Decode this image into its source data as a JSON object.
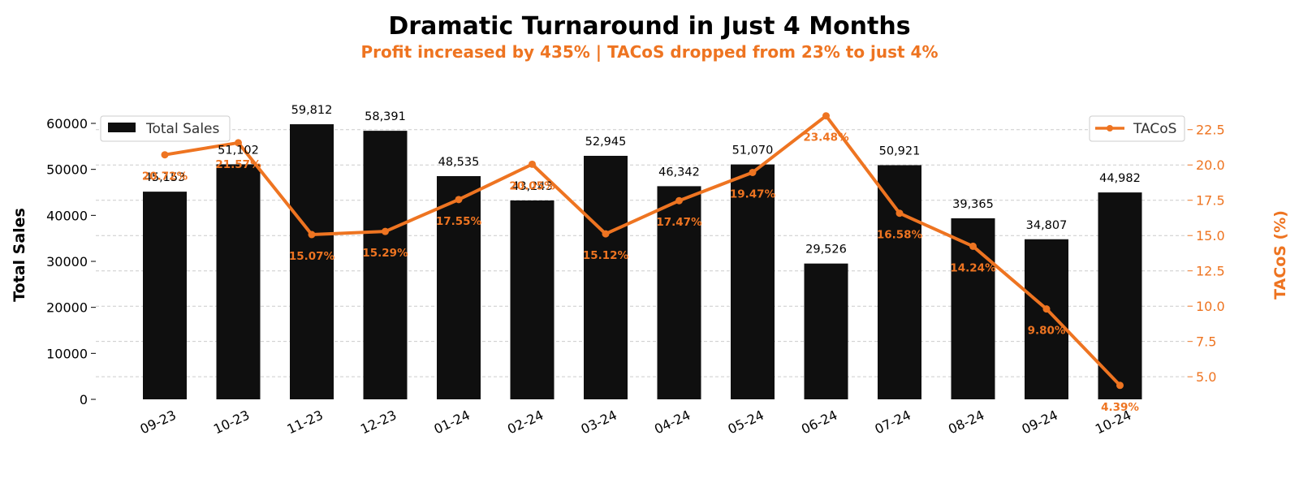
{
  "colors": {
    "bar": "#0f0f0f",
    "accent": "#ee7421",
    "grid": "#cccccc"
  },
  "chart_data": {
    "type": "bar",
    "title": "Dramatic Turnaround in Just 4 Months",
    "subtitle": "Profit increased by 435%  |  TACoS dropped from 23% to just 4%",
    "categories": [
      "09-23",
      "10-23",
      "11-23",
      "12-23",
      "01-24",
      "02-24",
      "03-24",
      "04-24",
      "05-24",
      "06-24",
      "07-24",
      "08-24",
      "09-24",
      "10-24"
    ],
    "series": [
      {
        "name": "Total Sales",
        "type": "bar",
        "axis": "left",
        "values": [
          45153,
          51102,
          59812,
          58391,
          48535,
          43243,
          52945,
          46342,
          51070,
          29526,
          50921,
          39365,
          34807,
          44982
        ],
        "labels": [
          "45,153",
          "51,102",
          "59,812",
          "58,391",
          "48,535",
          "43,243",
          "52,945",
          "46,342",
          "51,070",
          "29,526",
          "50,921",
          "39,365",
          "34,807",
          "44,982"
        ]
      },
      {
        "name": "TACoS",
        "type": "line",
        "axis": "right",
        "values": [
          20.72,
          21.57,
          15.07,
          15.29,
          17.55,
          20.05,
          15.12,
          17.47,
          19.47,
          23.48,
          16.58,
          14.24,
          9.8,
          4.39
        ],
        "labels": [
          "20.72%",
          "21.57%",
          "15.07%",
          "15.29%",
          "17.55%",
          "20.05%",
          "15.12%",
          "17.47%",
          "19.47%",
          "23.48%",
          "16.58%",
          "14.24%",
          "9.80%",
          "4.39%"
        ]
      }
    ],
    "ylabel": "Total Sales",
    "y2label": "TACoS (%)",
    "ylim": [
      0,
      66000
    ],
    "y2lim": [
      3.4,
      24.9
    ],
    "yticks": [
      "0",
      "10000",
      "20000",
      "30000",
      "40000",
      "50000",
      "60000"
    ],
    "y2ticks": [
      "5.0",
      "7.5",
      "10.0",
      "12.5",
      "15.0",
      "17.5",
      "20.0",
      "22.5"
    ],
    "grid": true,
    "legend": [
      {
        "label": "Total Sales",
        "placement": "top-left"
      },
      {
        "label": "TACoS",
        "placement": "top-right"
      }
    ]
  }
}
